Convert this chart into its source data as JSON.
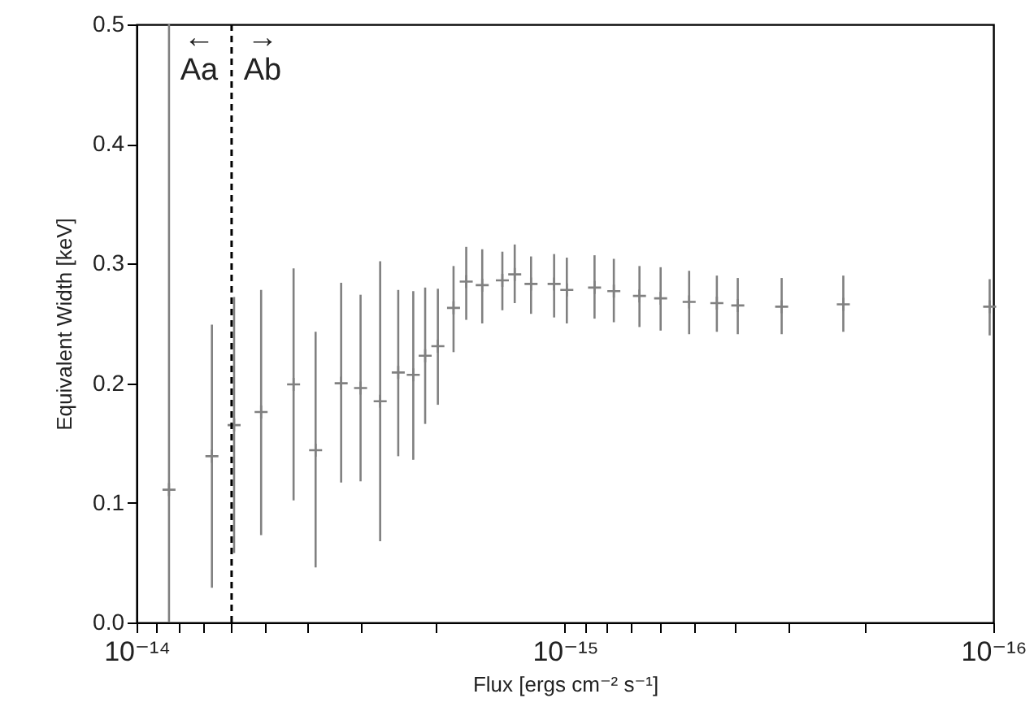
{
  "chart_data": {
    "type": "scatter",
    "xlabel": "Flux [ergs cm⁻² s⁻¹]",
    "ylabel": "Equivalent Width [keV]",
    "x": [
      8.4e-15,
      6.67e-15,
      5.92e-15,
      5.12e-15,
      4.3e-15,
      3.82e-15,
      3.33e-15,
      3e-15,
      2.7e-15,
      2.45e-15,
      2.26e-15,
      2.12e-15,
      1.98e-15,
      1.82e-15,
      1.7e-15,
      1.56e-15,
      1.4e-15,
      1.31e-15,
      1.2e-15,
      1.06e-15,
      9.9e-16,
      8.53e-16,
      7.69e-16,
      6.7e-16,
      5.98e-16,
      5.13e-16,
      4.42e-16,
      3.95e-16,
      3.12e-16,
      2.24e-16,
      1.02e-16
    ],
    "series": [
      {
        "color": "#808080",
        "values": [
          0.111,
          0.139,
          0.165,
          0.176,
          0.199,
          0.144,
          0.2,
          0.196,
          0.185,
          0.209,
          0.207,
          0.223,
          0.231,
          0.263,
          0.285,
          0.282,
          0.286,
          0.291,
          0.283,
          0.283,
          0.278,
          0.28,
          0.277,
          0.273,
          0.271,
          0.268,
          0.267,
          0.265,
          0.264,
          0.266,
          0.264
        ],
        "errors": [
          [
            0,
            0.5
          ],
          [
            0.029,
            0.249
          ],
          [
            0.058,
            0.272
          ],
          [
            0.073,
            0.278
          ],
          [
            0.102,
            0.296
          ],
          [
            0.046,
            0.243
          ],
          [
            0.117,
            0.284
          ],
          [
            0.118,
            0.274
          ],
          [
            0.068,
            0.302
          ],
          [
            0.139,
            0.278
          ],
          [
            0.136,
            0.277
          ],
          [
            0.166,
            0.28
          ],
          [
            0.182,
            0.279
          ],
          [
            0.226,
            0.298
          ],
          [
            0.253,
            0.314
          ],
          [
            0.25,
            0.312
          ],
          [
            0.261,
            0.31
          ],
          [
            0.267,
            0.316
          ],
          [
            0.258,
            0.306
          ],
          [
            0.255,
            0.308
          ],
          [
            0.25,
            0.305
          ],
          [
            0.254,
            0.307
          ],
          [
            0.251,
            0.304
          ],
          [
            0.247,
            0.298
          ],
          [
            0.244,
            0.297
          ],
          [
            0.241,
            0.294
          ],
          [
            0.243,
            0.29
          ],
          [
            0.241,
            0.288
          ],
          [
            0.241,
            0.288
          ],
          [
            0.243,
            0.29
          ],
          [
            0.24,
            0.287
          ]
        ]
      }
    ],
    "marker": "cross",
    "log": "x",
    "grid": false,
    "xlim": [
      1e-14,
      1e-16
    ],
    "xticks": [
      {
        "value": 1e-14,
        "label": "10⁻¹⁴"
      },
      {
        "value": 9e-15,
        "label": null
      },
      {
        "value": 8e-15,
        "label": null
      },
      {
        "value": 7e-15,
        "label": null
      },
      {
        "value": 6e-15,
        "label": null
      },
      {
        "value": 5e-15,
        "label": null
      },
      {
        "value": 4e-15,
        "label": null
      },
      {
        "value": 3e-15,
        "label": null
      },
      {
        "value": 2e-15,
        "label": null
      },
      {
        "value": 1e-15,
        "label": "10⁻¹⁵"
      },
      {
        "value": 9e-16,
        "label": null
      },
      {
        "value": 8e-16,
        "label": null
      },
      {
        "value": 7e-16,
        "label": null
      },
      {
        "value": 6e-16,
        "label": null
      },
      {
        "value": 5e-16,
        "label": null
      },
      {
        "value": 4e-16,
        "label": null
      },
      {
        "value": 3e-16,
        "label": null
      },
      {
        "value": 2e-16,
        "label": null
      },
      {
        "value": 1e-16,
        "label": "10⁻¹⁶"
      }
    ],
    "ylim": [
      0,
      0.5
    ],
    "yticks": [
      {
        "value": 0,
        "label": "0.0"
      },
      0.1,
      0.2,
      0.3,
      0.4,
      0.5
    ],
    "ref_lines": [
      {
        "axis": "x",
        "value": 6e-15,
        "color": "#000000",
        "line_style": "dashed"
      }
    ],
    "annotations": [
      "←",
      "→",
      "Aa",
      "Ab"
    ]
  }
}
